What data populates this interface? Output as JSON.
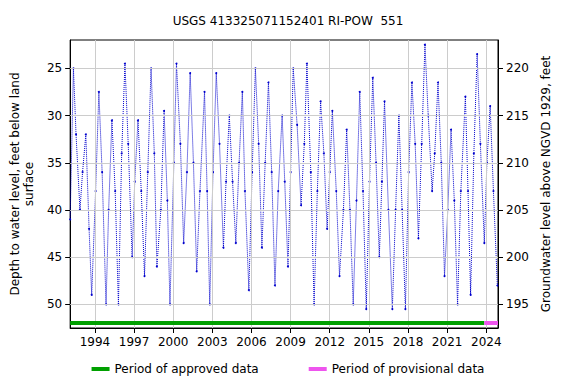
{
  "chart_data": {
    "type": "line",
    "title": "USGS 413325071152401 RI-POW  551",
    "y_label": "Depth to water level, feet below land\nsurface",
    "y2_label": "Groundwater level above NGVD 1929, feet",
    "x": [
      1992.1,
      1992.35,
      1992.55,
      1992.85,
      1993.05,
      1993.3,
      1993.55,
      1993.75,
      1994.05,
      1994.3,
      1994.55,
      1994.85,
      1995.05,
      1995.3,
      1995.55,
      1995.8,
      1996.05,
      1996.3,
      1996.55,
      1996.85,
      1997.05,
      1997.3,
      1997.55,
      1997.8,
      1998.05,
      1998.3,
      1998.55,
      1998.75,
      1999.05,
      1999.3,
      1999.55,
      1999.75,
      2000.05,
      2000.25,
      2000.55,
      2000.8,
      2001.05,
      2001.3,
      2001.55,
      2001.8,
      2002.05,
      2002.4,
      2002.6,
      2002.8,
      2003.05,
      2003.3,
      2003.55,
      2003.85,
      2004.05,
      2004.3,
      2004.55,
      2004.8,
      2005.05,
      2005.3,
      2005.5,
      2005.8,
      2006.05,
      2006.3,
      2006.55,
      2006.8,
      2007.05,
      2007.3,
      2007.55,
      2007.8,
      2008.05,
      2008.35,
      2008.55,
      2008.8,
      2009.0,
      2009.2,
      2009.5,
      2009.8,
      2010.05,
      2010.25,
      2010.55,
      2010.8,
      2011.05,
      2011.3,
      2011.55,
      2011.8,
      2012.0,
      2012.2,
      2012.5,
      2012.75,
      2013.05,
      2013.3,
      2013.55,
      2013.8,
      2014.05,
      2014.3,
      2014.55,
      2014.8,
      2015.05,
      2015.3,
      2015.55,
      2015.8,
      2016.0,
      2016.2,
      2016.5,
      2016.8,
      2017.05,
      2017.3,
      2017.55,
      2017.8,
      2018.05,
      2018.3,
      2018.55,
      2018.8,
      2019.05,
      2019.3,
      2019.55,
      2019.85,
      2020.05,
      2020.3,
      2020.55,
      2020.8,
      2021.05,
      2021.3,
      2021.55,
      2021.8,
      2022.05,
      2022.4,
      2022.6,
      2022.8,
      2023.05,
      2023.3,
      2023.55,
      2023.85,
      2024.05,
      2024.3,
      2024.55,
      2024.85
    ],
    "values": [
      41,
      25,
      32,
      40,
      36,
      32,
      42,
      49,
      38,
      27.5,
      36,
      50,
      40,
      30.5,
      38,
      50,
      34,
      24.5,
      33,
      45,
      37,
      30.5,
      38,
      47,
      36,
      25,
      34,
      46,
      40,
      29.5,
      39,
      50,
      35,
      24.5,
      33,
      43.5,
      36,
      25.5,
      35,
      46.5,
      38,
      27.5,
      38,
      50,
      36,
      25.5,
      33,
      44,
      37,
      30,
      37,
      43.5,
      35,
      27.5,
      38,
      48.5,
      36,
      25,
      33,
      44,
      35,
      26.5,
      36,
      48,
      38,
      30,
      37,
      46,
      36,
      25,
      31,
      39.5,
      33,
      24.5,
      36,
      50,
      38,
      28.5,
      34,
      42,
      36,
      29.5,
      38,
      47,
      40,
      31.5,
      40,
      50,
      39,
      27.5,
      38,
      50.5,
      37,
      26,
      35,
      45,
      37,
      28.5,
      40,
      50.5,
      40,
      30,
      40,
      50.5,
      36,
      26.5,
      33,
      43,
      33,
      22.5,
      30,
      38,
      34,
      26.5,
      35,
      47,
      40,
      31.5,
      39,
      50,
      38,
      28,
      38,
      49,
      34,
      23.5,
      33,
      43.5,
      35,
      29,
      38,
      48
    ],
    "color": "#0000cc",
    "line_style": "dotted",
    "marker": "circle",
    "xlim": [
      1992.1,
      2024.9
    ],
    "xticks": [
      1994,
      1997,
      2000,
      2003,
      2006,
      2009,
      2012,
      2015,
      2018,
      2021,
      2024
    ],
    "ylim": [
      22,
      52.5
    ],
    "yticks": [
      25,
      30,
      35,
      40,
      45,
      50
    ],
    "y2lim": [
      192.5,
      223
    ],
    "y2ticks": [
      195,
      200,
      205,
      210,
      215,
      220
    ],
    "grid": true,
    "legend": "bottom",
    "periods": [
      {
        "name": "Period of approved data",
        "color": "#00a000",
        "start": 1992.1,
        "end": 2023.85
      },
      {
        "name": "Period of provisional data",
        "color": "#ee55ee",
        "start": 2023.85,
        "end": 2024.9
      }
    ]
  }
}
